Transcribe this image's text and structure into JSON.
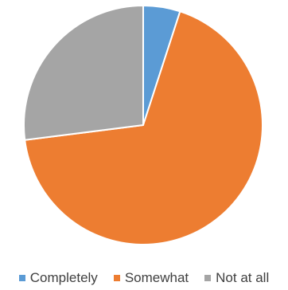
{
  "chart_data": {
    "type": "pie",
    "title": "",
    "categories": [
      "Completely",
      "Somewhat",
      "Not at all"
    ],
    "values": [
      5,
      68,
      27
    ],
    "colors": [
      "#5b9bd5",
      "#ed7d31",
      "#a5a5a5"
    ],
    "legend_position": "bottom",
    "start_angle_deg": 0,
    "direction": "clockwise"
  }
}
